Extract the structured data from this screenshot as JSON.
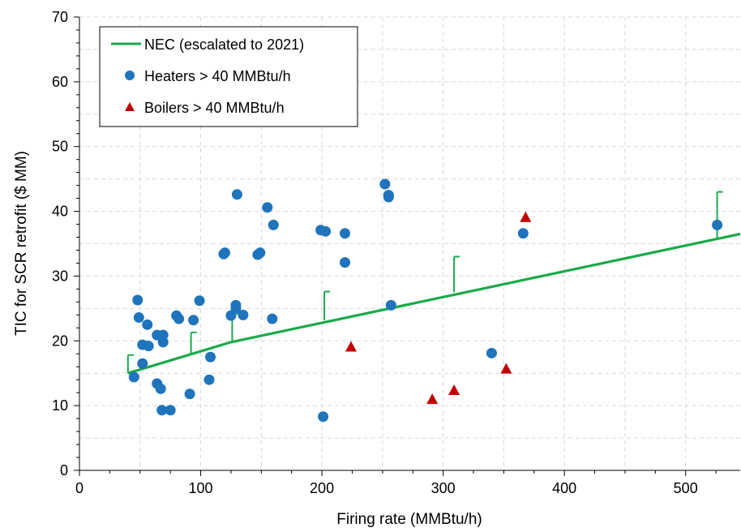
{
  "chart_data": {
    "type": "scatter",
    "title": "",
    "xlabel": "Firing rate (MMBtu/h)",
    "ylabel": "TIC for SCR retrofit ($ MM)",
    "xlim": [
      0,
      545
    ],
    "ylim": [
      0,
      70
    ],
    "xticks": [
      0,
      100,
      200,
      300,
      400,
      500
    ],
    "yticks": [
      0,
      10,
      20,
      30,
      40,
      50,
      60,
      70
    ],
    "grid": true,
    "legend_position": "top-left",
    "series": [
      {
        "name": "NEC (escalated to 2021)",
        "kind": "line",
        "color": "#1aaa4a",
        "points": [
          [
            40,
            15.0
          ],
          [
            125,
            19.8
          ],
          [
            545,
            36.5
          ]
        ],
        "error_bars": [
          {
            "x": 40,
            "low": 15.0,
            "high": 17.8
          },
          {
            "x": 92,
            "low": 17.9,
            "high": 21.3
          },
          {
            "x": 126,
            "low": 19.8,
            "high": 24.2
          },
          {
            "x": 202,
            "low": 23.2,
            "high": 27.6
          },
          {
            "x": 309,
            "low": 27.5,
            "high": 33.0
          },
          {
            "x": 526,
            "low": 35.8,
            "high": 43.0
          }
        ]
      },
      {
        "name": "Heaters > 40 MMBtu/h",
        "kind": "circle",
        "color": "#1f74bb",
        "points": [
          [
            45,
            14.4
          ],
          [
            48,
            26.3
          ],
          [
            49,
            23.6
          ],
          [
            52,
            19.4
          ],
          [
            52,
            16.5
          ],
          [
            56,
            22.5
          ],
          [
            57,
            19.2
          ],
          [
            64,
            20.9
          ],
          [
            64,
            13.4
          ],
          [
            67,
            12.6
          ],
          [
            68,
            9.3
          ],
          [
            69,
            20.9
          ],
          [
            69,
            19.8
          ],
          [
            75,
            9.3
          ],
          [
            80,
            23.9
          ],
          [
            82,
            23.4
          ],
          [
            91,
            11.8
          ],
          [
            94,
            23.2
          ],
          [
            99,
            26.2
          ],
          [
            107,
            14.0
          ],
          [
            108,
            17.5
          ],
          [
            119,
            33.4
          ],
          [
            120,
            33.6
          ],
          [
            125,
            23.9
          ],
          [
            129,
            25.5
          ],
          [
            129,
            25.0
          ],
          [
            130,
            42.6
          ],
          [
            135,
            24.0
          ],
          [
            147,
            33.3
          ],
          [
            149,
            33.6
          ],
          [
            155,
            40.6
          ],
          [
            159,
            23.4
          ],
          [
            160,
            37.9
          ],
          [
            199,
            37.1
          ],
          [
            201,
            8.3
          ],
          [
            203,
            36.9
          ],
          [
            219,
            32.1
          ],
          [
            219,
            36.6
          ],
          [
            252,
            44.2
          ],
          [
            255,
            42.5
          ],
          [
            255,
            42.2
          ],
          [
            257,
            25.5
          ],
          [
            340,
            18.1
          ],
          [
            366,
            36.6
          ],
          [
            526,
            37.9
          ]
        ]
      },
      {
        "name": "Boilers > 40 MMBtu/h",
        "kind": "triangle",
        "color": "#c00000",
        "points": [
          [
            224,
            19.1
          ],
          [
            291,
            11.0
          ],
          [
            309,
            12.4
          ],
          [
            352,
            15.7
          ],
          [
            368,
            39.1
          ]
        ]
      }
    ]
  }
}
